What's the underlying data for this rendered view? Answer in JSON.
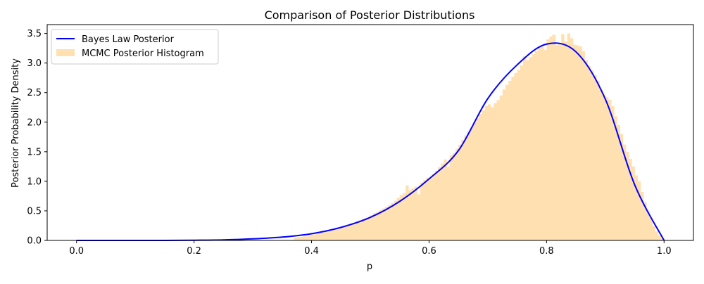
{
  "chart_data": {
    "type": "histogram+line",
    "title": "Comparison of Posterior Distributions",
    "xlabel": "p",
    "ylabel": "Posterior Probability Density",
    "xlim": [
      -0.05,
      1.05
    ],
    "ylim": [
      0.0,
      3.65
    ],
    "xticks": [
      0.0,
      0.2,
      0.4,
      0.6,
      0.8,
      1.0
    ],
    "xtick_labels": [
      "0.0",
      "0.2",
      "0.4",
      "0.6",
      "0.8",
      "1.0"
    ],
    "yticks": [
      0.0,
      0.5,
      1.0,
      1.5,
      2.0,
      2.5,
      3.0,
      3.5
    ],
    "ytick_labels": [
      "0.0",
      "0.5",
      "1.0",
      "1.5",
      "2.0",
      "2.5",
      "3.0",
      "3.5"
    ],
    "grid": false,
    "legend_position": "top-left",
    "series": [
      {
        "name": "Bayes Law Posterior",
        "kind": "line",
        "color": "#0000ff",
        "x": [
          0.0,
          0.05,
          0.1,
          0.15,
          0.2,
          0.25,
          0.3,
          0.35,
          0.4,
          0.45,
          0.5,
          0.55,
          0.6,
          0.65,
          0.7,
          0.75,
          0.8,
          0.85,
          0.9,
          0.95,
          1.0
        ],
        "y": [
          0.0,
          0.0,
          0.0,
          0.0,
          0.003,
          0.009,
          0.026,
          0.056,
          0.113,
          0.22,
          0.39,
          0.66,
          1.04,
          1.52,
          2.4,
          2.97,
          3.32,
          3.19,
          2.39,
          0.94,
          0.0
        ]
      },
      {
        "name": "MCMC Posterior Histogram",
        "kind": "histogram",
        "color": "#ffe0b0",
        "bin_start": 0.37,
        "bin_width": 0.005,
        "values": [
          0.05,
          0.06,
          0.06,
          0.07,
          0.08,
          0.09,
          0.1,
          0.11,
          0.12,
          0.13,
          0.14,
          0.15,
          0.16,
          0.18,
          0.19,
          0.2,
          0.22,
          0.24,
          0.26,
          0.28,
          0.3,
          0.32,
          0.34,
          0.36,
          0.38,
          0.4,
          0.43,
          0.46,
          0.48,
          0.51,
          0.54,
          0.57,
          0.6,
          0.63,
          0.67,
          0.72,
          0.77,
          0.8,
          0.93,
          0.85,
          0.88,
          0.91,
          0.78,
          0.98,
          1.02,
          1.06,
          1.05,
          1.12,
          1.18,
          1.24,
          1.3,
          1.37,
          1.25,
          1.44,
          1.48,
          1.55,
          1.62,
          1.7,
          1.78,
          1.85,
          1.92,
          2.0,
          2.07,
          2.14,
          2.2,
          2.27,
          2.3,
          2.25,
          2.32,
          2.37,
          2.45,
          2.55,
          2.63,
          2.7,
          2.77,
          2.83,
          2.88,
          2.96,
          3.11,
          3.05,
          3.1,
          3.15,
          3.2,
          3.26,
          3.28,
          3.22,
          3.4,
          3.45,
          3.48,
          3.3,
          3.33,
          3.49,
          3.36,
          3.5,
          3.42,
          3.31,
          3.3,
          3.28,
          3.2,
          3.05,
          2.95,
          2.88,
          2.8,
          2.7,
          2.55,
          2.48,
          2.42,
          2.38,
          2.27,
          2.1,
          1.95,
          1.8,
          1.62,
          1.5,
          1.38,
          1.25,
          1.1,
          1.0,
          0.82,
          0.65,
          0.5,
          0.38,
          0.25,
          0.15,
          0.08,
          0.03
        ]
      }
    ]
  }
}
